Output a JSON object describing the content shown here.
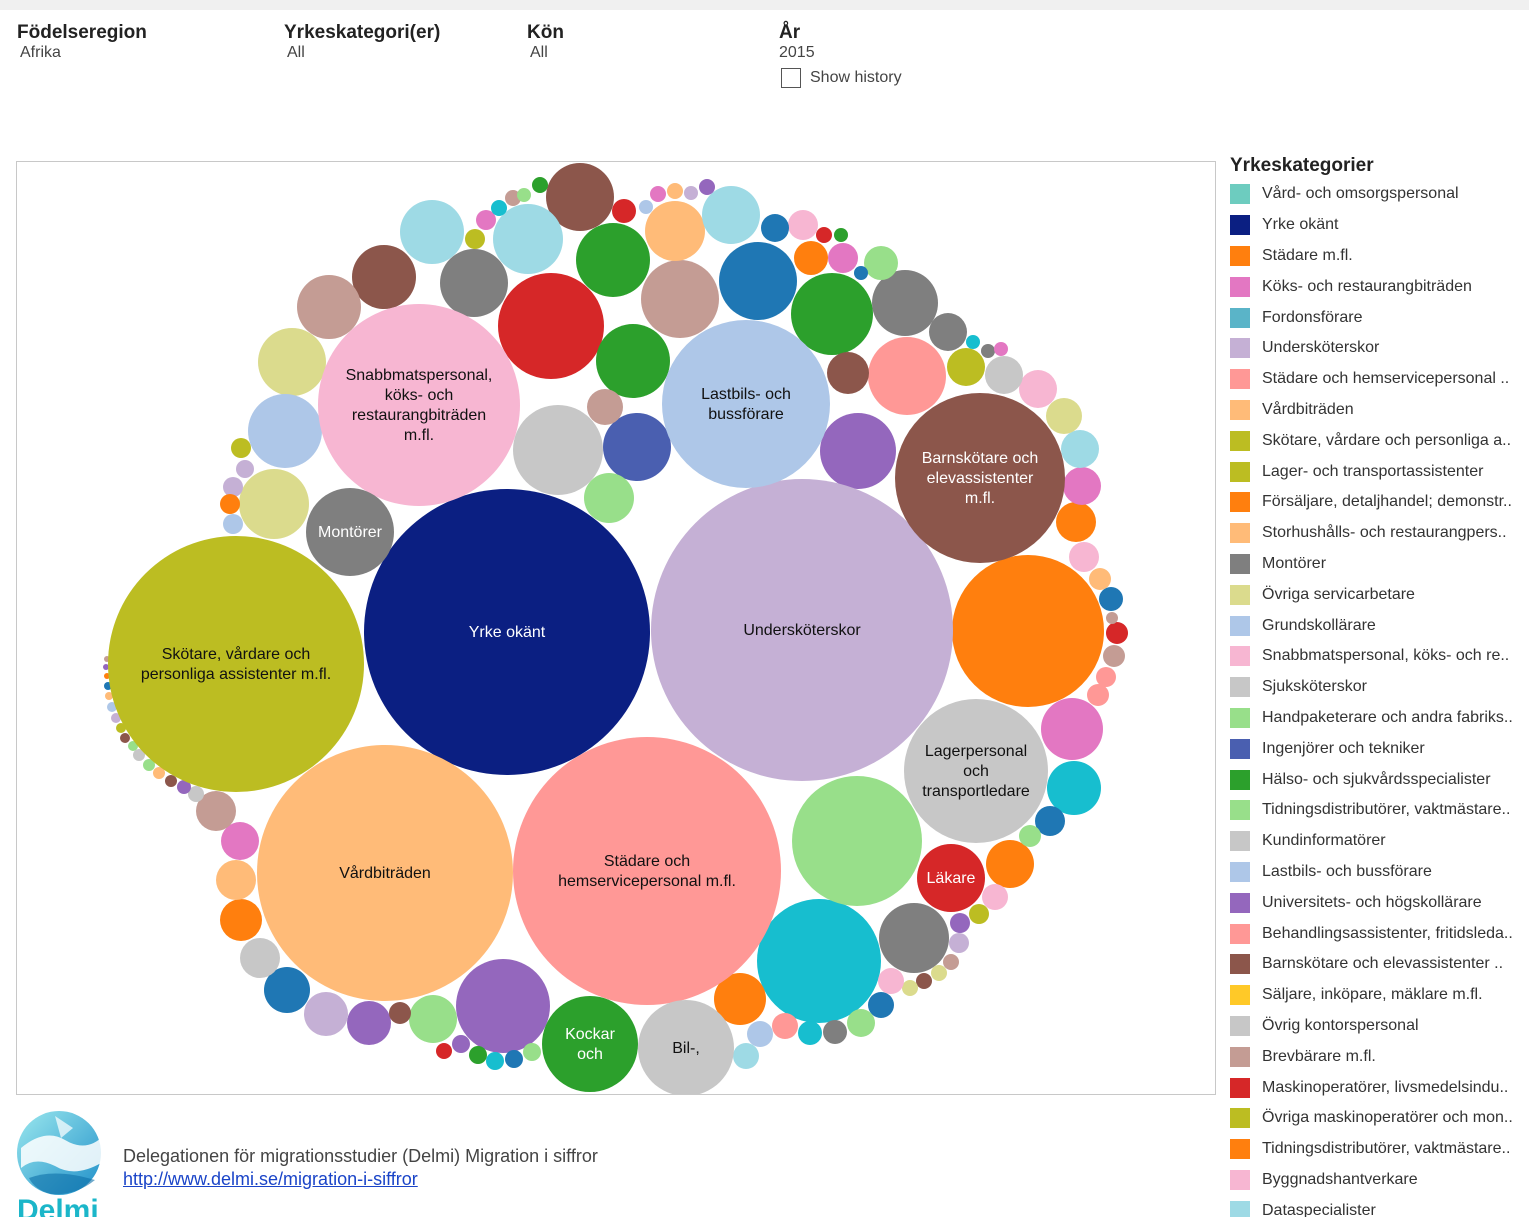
{
  "filters": [
    {
      "title": "Födelseregion",
      "value": "Afrika"
    },
    {
      "title": "Yrkeskategori(er)",
      "value": "All"
    },
    {
      "title": "Kön",
      "value": "All"
    },
    {
      "title": "År",
      "value": "2015"
    }
  ],
  "show_history": {
    "label": "Show history",
    "checked": false
  },
  "legend": {
    "title": "Yrkeskategorier",
    "items": [
      {
        "label": "Vård- och omsorgspersonal",
        "color": "#6dccbf"
      },
      {
        "label": "Yrke okänt",
        "color": "#0b1f82"
      },
      {
        "label": "Städare m.fl.",
        "color": "#ff7f0e"
      },
      {
        "label": "Köks- och restaurangbiträden",
        "color": "#e377c2"
      },
      {
        "label": "Fordonsförare",
        "color": "#5ab4c8"
      },
      {
        "label": "Undersköterskor",
        "color": "#c5b0d5"
      },
      {
        "label": "Städare och hemservicepersonal ..",
        "color": "#ff9896"
      },
      {
        "label": "Vårdbiträden",
        "color": "#ffbb78"
      },
      {
        "label": "Skötare, vårdare och personliga a..",
        "color": "#bcbd22"
      },
      {
        "label": "Lager- och transportassistenter",
        "color": "#bcbd22"
      },
      {
        "label": "Försäljare, detaljhandel; demonstr..",
        "color": "#ff7f0e"
      },
      {
        "label": "Storhushålls- och restaurangpers..",
        "color": "#ffbb78"
      },
      {
        "label": "Montörer",
        "color": "#7f7f7f"
      },
      {
        "label": "Övriga servicarbetare",
        "color": "#dbdb8d"
      },
      {
        "label": "Grundskollärare",
        "color": "#aec7e8"
      },
      {
        "label": "Snabbmatspersonal, köks- och re..",
        "color": "#f7b6d2"
      },
      {
        "label": "Sjuksköterskor",
        "color": "#c7c7c7"
      },
      {
        "label": "Handpaketerare och andra fabriks..",
        "color": "#98df8a"
      },
      {
        "label": "Ingenjörer och tekniker",
        "color": "#4a5fb0"
      },
      {
        "label": "Hälso- och sjukvårdsspecialister",
        "color": "#2ca02c"
      },
      {
        "label": "Tidningsdistributörer, vaktmästare..",
        "color": "#98df8a"
      },
      {
        "label": "Kundinformatörer",
        "color": "#c7c7c7"
      },
      {
        "label": "Lastbils- och bussförare",
        "color": "#aec7e8"
      },
      {
        "label": "Universitets- och högskollärare",
        "color": "#9467bd"
      },
      {
        "label": "Behandlingsassistenter, fritidsleda..",
        "color": "#ff9896"
      },
      {
        "label": "Barnskötare och elevassistenter ..",
        "color": "#8c564b"
      },
      {
        "label": "Säljare, inköpare, mäklare m.fl.",
        "color": "#ffc928"
      },
      {
        "label": "Övrig kontorspersonal",
        "color": "#c7c7c7"
      },
      {
        "label": "Brevbärare m.fl.",
        "color": "#c49c94"
      },
      {
        "label": "Maskinoperatörer, livsmedelsindu..",
        "color": "#d62728"
      },
      {
        "label": "Övriga maskinoperatörer och mon..",
        "color": "#bcbd22"
      },
      {
        "label": "Tidningsdistributörer, vaktmästare..",
        "color": "#ff7f0e"
      },
      {
        "label": "Byggnadshantverkare",
        "color": "#f7b6d2"
      },
      {
        "label": "Dataspecialister",
        "color": "#9edae5"
      }
    ]
  },
  "chart_data": {
    "type": "bubble",
    "labeled_bubbles": [
      {
        "lines": [
          "Yrke okänt"
        ],
        "color": "#0b1f82",
        "text_color": "#ffffff"
      },
      {
        "lines": [
          "Undersköterskor"
        ],
        "color": "#c5b0d5",
        "text_color": "#111111"
      },
      {
        "lines": [
          "Städare och",
          "hemservicepersonal m.fl."
        ],
        "color": "#ff9896",
        "text_color": "#111111"
      },
      {
        "lines": [
          "Vårdbiträden"
        ],
        "color": "#ffbb78",
        "text_color": "#111111"
      },
      {
        "lines": [
          "Skötare, vårdare och",
          "personliga assistenter m.fl."
        ],
        "color": "#bcbd22",
        "text_color": "#111111"
      },
      {
        "lines": [
          "Snabbmatspersonal,",
          "köks- och",
          "restaurangbiträden",
          "m.fl."
        ],
        "color": "#f7b6d2",
        "text_color": "#111111"
      },
      {
        "lines": [
          "Lastbils- och",
          "bussförare"
        ],
        "color": "#aec7e8",
        "text_color": "#111111"
      },
      {
        "lines": [
          "Barnskötare och",
          "elevassistenter",
          "m.fl."
        ],
        "color": "#8c564b",
        "text_color": "#ffffff"
      },
      {
        "lines": [
          "Lagerpersonal",
          "och",
          "transportledare"
        ],
        "color": "#c7c7c7",
        "text_color": "#111111"
      },
      {
        "lines": [
          "Montörer"
        ],
        "color": "#7f7f7f",
        "text_color": "#ffffff"
      },
      {
        "lines": [
          "Läkare"
        ],
        "color": "#d62728",
        "text_color": "#ffffff"
      },
      {
        "lines": [
          "Kockar",
          "och"
        ],
        "color": "#2ca02c",
        "text_color": "#ffffff"
      },
      {
        "lines": [
          "Bil-,"
        ],
        "color": "#c7c7c7",
        "text_color": "#111111"
      }
    ]
  },
  "footer": {
    "text": "Delegationen för migrationsstudier (Delmi) Migration i siffror",
    "link": "http://www.delmi.se/migration-i-siffror",
    "logo_text": "Delmi"
  }
}
